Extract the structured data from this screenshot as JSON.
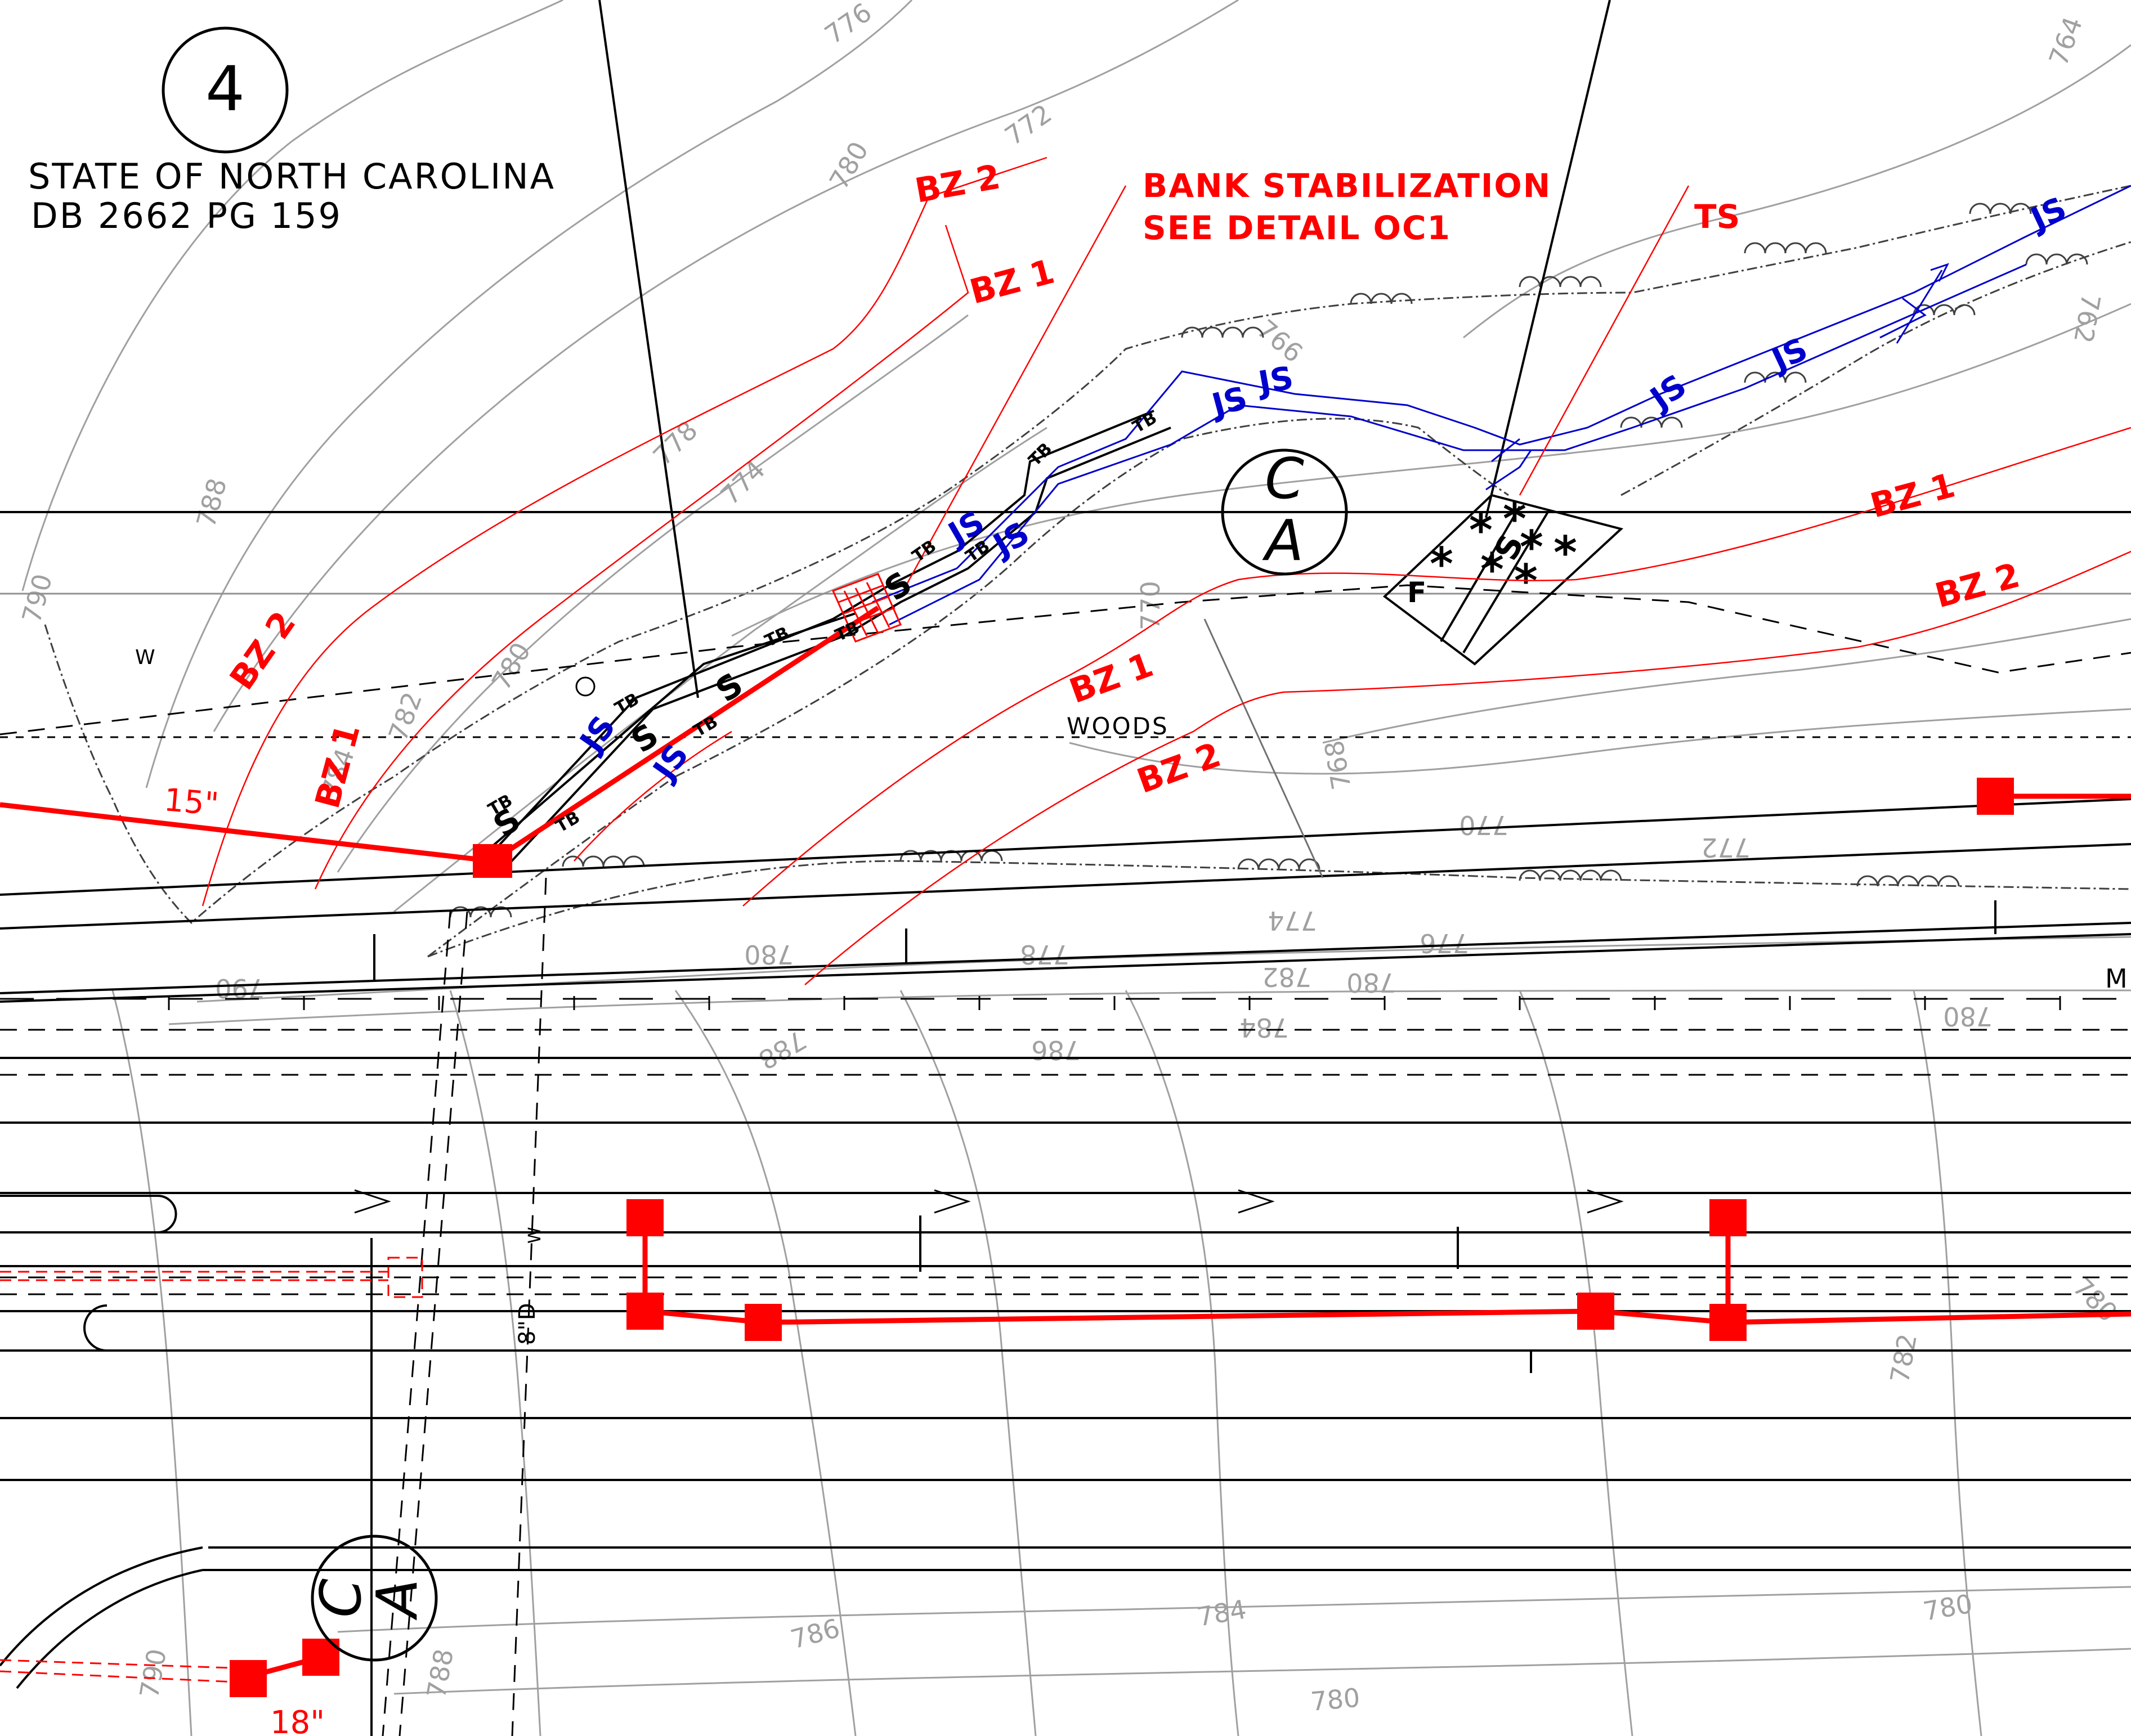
{
  "sheet": {
    "number": "4",
    "owner_line1": "STATE OF NORTH CAROLINA",
    "owner_line2": "DB 2662 PG 159"
  },
  "callouts": {
    "bank_stabilization_line1": "BANK STABILIZATION",
    "bank_stabilization_line2": "SEE DETAIL OC1",
    "ts": "TS",
    "woods": "WOODS",
    "pipe_15": "15\"",
    "pipe_18": "18\"",
    "pipe_8d": "8\"D",
    "water_w": "W",
    "m_edge": "M"
  },
  "buffer_labels": {
    "bz1": "BZ 1",
    "bz2": "BZ 2"
  },
  "stream_labels": {
    "js": "JS",
    "tb": "TB",
    "s": "S"
  },
  "section_markers": [
    {
      "top": "C",
      "bottom": "A"
    },
    {
      "top": "C",
      "bottom": "A"
    }
  ],
  "contours": [
    "790",
    "788",
    "786",
    "784",
    "782",
    "780",
    "778",
    "776",
    "774",
    "772",
    "770",
    "768",
    "766",
    "764",
    "762"
  ],
  "colors": {
    "linework": "#000000",
    "proposed": "#ff0000",
    "stream": "#0000cc",
    "contour": "#a0a0a0"
  }
}
